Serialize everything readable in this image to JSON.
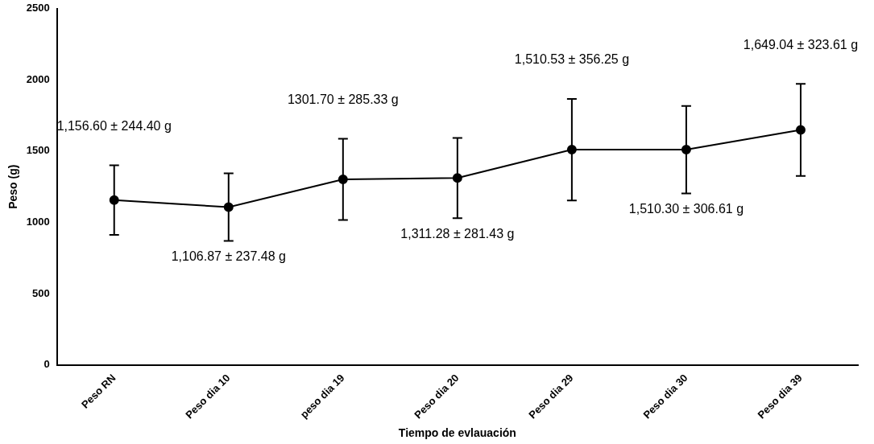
{
  "chart_data": {
    "type": "line",
    "xlabel": "Tiempo de evlauación",
    "ylabel": "Peso (g)",
    "categories": [
      "Peso RN",
      "Peso dia 10",
      "peso dia 19",
      "Peso dia 20",
      "Peso dia 29",
      "Peso dia 30",
      "Peso dia 39"
    ],
    "series": [
      {
        "color": "#000000",
        "values": [
          1156.6,
          1106.9,
          1301.7,
          1311.3,
          1510.5,
          1510.3,
          1649.0
        ],
        "errors": [
          244.4,
          237.5,
          285.3,
          281.4,
          356.3,
          306.6,
          323.6
        ]
      }
    ],
    "annotations": [
      "1,156.60 ± 244.40 g",
      "1,106.87 ± 237.48 g",
      "1301.70 ± 285.33 g",
      "1,311.28 ± 281.43 g",
      "1,510.53 ± 356.25 g",
      "1,510.30 ± 306.61 g",
      "1,649.04 ± 323.61 g"
    ],
    "ylim": [
      0,
      2500
    ],
    "yticks": [
      0,
      500,
      1000,
      1500,
      2000,
      2500
    ],
    "grid": false,
    "legend": false,
    "marker": "circle",
    "line_style": "solid"
  }
}
